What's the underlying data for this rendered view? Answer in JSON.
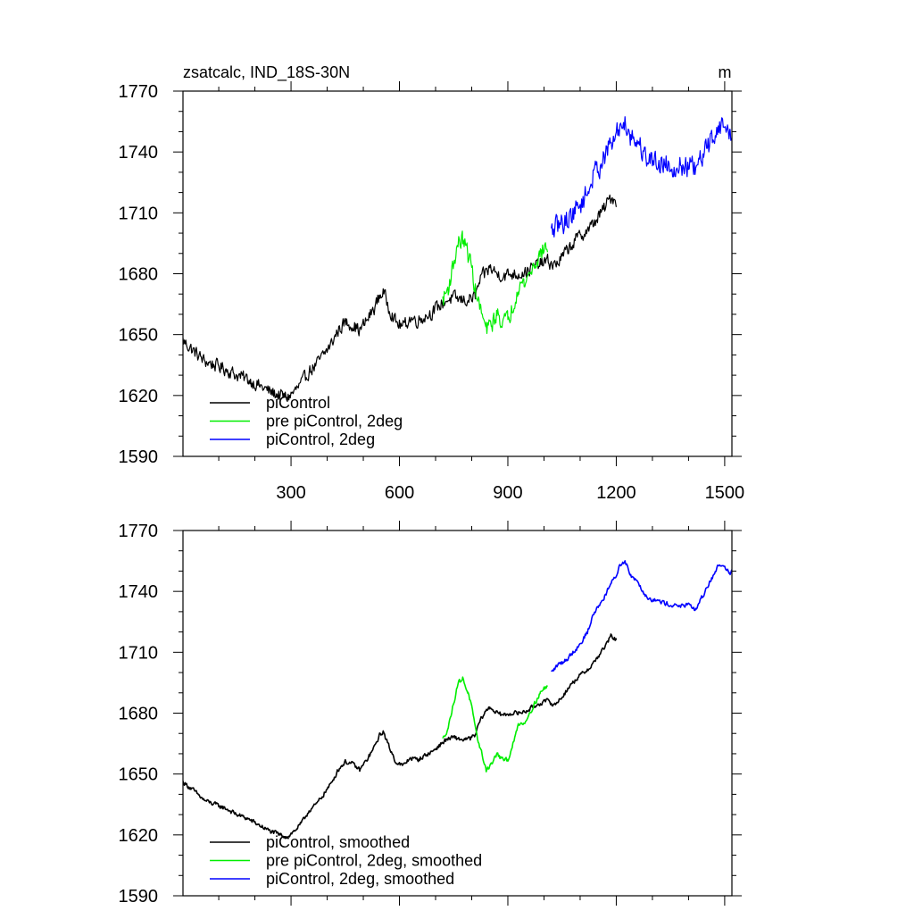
{
  "chart_data": [
    {
      "type": "line",
      "title": "zsatcalc, IND_18S-30N",
      "units": "m",
      "xlim": [
        1,
        1520
      ],
      "ylim": [
        1590,
        1770
      ],
      "xticks": [
        300,
        600,
        900,
        1200,
        1500
      ],
      "yticks": [
        1590,
        1620,
        1650,
        1680,
        1710,
        1740,
        1770
      ],
      "x_minor_step": 100,
      "y_minor_step": 10,
      "legend_position": "bottom-left",
      "series": [
        {
          "name": "piControl",
          "color": "#000000",
          "noise": 3,
          "points": [
            [
              1,
              1647
            ],
            [
              30,
              1642
            ],
            [
              60,
              1637
            ],
            [
              90,
              1635
            ],
            [
              120,
              1633
            ],
            [
              150,
              1630
            ],
            [
              180,
              1628
            ],
            [
              210,
              1625
            ],
            [
              240,
              1622
            ],
            [
              270,
              1620
            ],
            [
              290,
              1619
            ],
            [
              310,
              1622
            ],
            [
              330,
              1626
            ],
            [
              350,
              1632
            ],
            [
              370,
              1635
            ],
            [
              390,
              1640
            ],
            [
              410,
              1645
            ],
            [
              430,
              1652
            ],
            [
              450,
              1656
            ],
            [
              470,
              1655
            ],
            [
              490,
              1652
            ],
            [
              510,
              1657
            ],
            [
              530,
              1663
            ],
            [
              545,
              1669
            ],
            [
              555,
              1671
            ],
            [
              570,
              1664
            ],
            [
              590,
              1656
            ],
            [
              610,
              1654
            ],
            [
              630,
              1658
            ],
            [
              650,
              1657
            ],
            [
              670,
              1659
            ],
            [
              690,
              1661
            ],
            [
              710,
              1664
            ],
            [
              730,
              1667
            ],
            [
              750,
              1668
            ],
            [
              770,
              1667
            ],
            [
              790,
              1667
            ],
            [
              810,
              1669
            ],
            [
              820,
              1675
            ],
            [
              835,
              1680
            ],
            [
              850,
              1683
            ],
            [
              870,
              1680
            ],
            [
              890,
              1679
            ],
            [
              910,
              1680
            ],
            [
              930,
              1680
            ],
            [
              950,
              1681
            ],
            [
              970,
              1683
            ],
            [
              990,
              1685
            ],
            [
              1010,
              1686
            ],
            [
              1030,
              1684
            ],
            [
              1050,
              1688
            ],
            [
              1070,
              1693
            ],
            [
              1090,
              1697
            ],
            [
              1110,
              1700
            ],
            [
              1130,
              1703
            ],
            [
              1150,
              1708
            ],
            [
              1170,
              1713
            ],
            [
              1185,
              1718
            ],
            [
              1200,
              1716
            ]
          ]
        },
        {
          "name": "pre piControl, 2deg",
          "color": "#00ee00",
          "noise": 4,
          "points": [
            [
              720,
              1667
            ],
            [
              735,
              1673
            ],
            [
              750,
              1685
            ],
            [
              762,
              1695
            ],
            [
              775,
              1697
            ],
            [
              790,
              1690
            ],
            [
              800,
              1683
            ],
            [
              812,
              1670
            ],
            [
              825,
              1662
            ],
            [
              840,
              1652
            ],
            [
              855,
              1655
            ],
            [
              870,
              1660
            ],
            [
              885,
              1657
            ],
            [
              900,
              1657
            ],
            [
              915,
              1665
            ],
            [
              930,
              1675
            ],
            [
              945,
              1675
            ],
            [
              960,
              1680
            ],
            [
              975,
              1685
            ],
            [
              990,
              1690
            ],
            [
              1010,
              1694
            ]
          ]
        },
        {
          "name": "piControl, 2deg",
          "color": "#0000ff",
          "noise": 5,
          "points": [
            [
              1020,
              1700
            ],
            [
              1040,
              1704
            ],
            [
              1060,
              1706
            ],
            [
              1080,
              1710
            ],
            [
              1100,
              1714
            ],
            [
              1120,
              1720
            ],
            [
              1140,
              1730
            ],
            [
              1160,
              1735
            ],
            [
              1180,
              1742
            ],
            [
              1200,
              1748
            ],
            [
              1210,
              1753
            ],
            [
              1225,
              1755
            ],
            [
              1240,
              1748
            ],
            [
              1260,
              1745
            ],
            [
              1280,
              1738
            ],
            [
              1300,
              1736
            ],
            [
              1320,
              1735
            ],
            [
              1340,
              1734
            ],
            [
              1360,
              1733
            ],
            [
              1380,
              1733
            ],
            [
              1400,
              1733
            ],
            [
              1420,
              1731
            ],
            [
              1440,
              1738
            ],
            [
              1460,
              1745
            ],
            [
              1480,
              1752
            ],
            [
              1500,
              1753
            ],
            [
              1515,
              1748
            ],
            [
              1520,
              1750
            ]
          ]
        }
      ]
    },
    {
      "type": "line",
      "title": "",
      "xlim": [
        1,
        1520
      ],
      "ylim": [
        1590,
        1770
      ],
      "xticks": [
        300,
        600,
        900,
        1200,
        1500
      ],
      "yticks": [
        1590,
        1620,
        1650,
        1680,
        1710,
        1740,
        1770
      ],
      "x_minor_step": 100,
      "y_minor_step": 10,
      "legend_position": "bottom-left",
      "series": [
        {
          "name": "piControl, smoothed",
          "color": "#000000",
          "noise": 1,
          "points": [
            [
              1,
              1646
            ],
            [
              30,
              1642
            ],
            [
              60,
              1637
            ],
            [
              90,
              1635
            ],
            [
              120,
              1633
            ],
            [
              150,
              1630
            ],
            [
              180,
              1628
            ],
            [
              210,
              1625
            ],
            [
              240,
              1622
            ],
            [
              270,
              1620
            ],
            [
              290,
              1619
            ],
            [
              310,
              1622
            ],
            [
              330,
              1626
            ],
            [
              350,
              1632
            ],
            [
              370,
              1635
            ],
            [
              390,
              1640
            ],
            [
              410,
              1645
            ],
            [
              430,
              1652
            ],
            [
              450,
              1656
            ],
            [
              470,
              1655
            ],
            [
              490,
              1652
            ],
            [
              510,
              1657
            ],
            [
              530,
              1663
            ],
            [
              545,
              1669
            ],
            [
              555,
              1671
            ],
            [
              570,
              1664
            ],
            [
              590,
              1656
            ],
            [
              610,
              1654
            ],
            [
              630,
              1658
            ],
            [
              650,
              1657
            ],
            [
              670,
              1659
            ],
            [
              690,
              1661
            ],
            [
              710,
              1664
            ],
            [
              730,
              1667
            ],
            [
              750,
              1668
            ],
            [
              770,
              1667
            ],
            [
              790,
              1667
            ],
            [
              810,
              1669
            ],
            [
              820,
              1675
            ],
            [
              835,
              1680
            ],
            [
              850,
              1683
            ],
            [
              870,
              1680
            ],
            [
              890,
              1679
            ],
            [
              910,
              1680
            ],
            [
              930,
              1680
            ],
            [
              950,
              1681
            ],
            [
              970,
              1683
            ],
            [
              990,
              1685
            ],
            [
              1010,
              1686
            ],
            [
              1030,
              1684
            ],
            [
              1050,
              1688
            ],
            [
              1070,
              1693
            ],
            [
              1090,
              1697
            ],
            [
              1110,
              1700
            ],
            [
              1130,
              1703
            ],
            [
              1150,
              1708
            ],
            [
              1170,
              1713
            ],
            [
              1185,
              1718
            ],
            [
              1200,
              1716
            ]
          ]
        },
        {
          "name": "pre piControl, 2deg, smoothed",
          "color": "#00ee00",
          "noise": 1,
          "points": [
            [
              720,
              1667
            ],
            [
              735,
              1673
            ],
            [
              750,
              1685
            ],
            [
              762,
              1695
            ],
            [
              775,
              1697
            ],
            [
              790,
              1690
            ],
            [
              800,
              1683
            ],
            [
              812,
              1670
            ],
            [
              825,
              1662
            ],
            [
              840,
              1652
            ],
            [
              855,
              1655
            ],
            [
              870,
              1660
            ],
            [
              885,
              1657
            ],
            [
              900,
              1657
            ],
            [
              915,
              1665
            ],
            [
              930,
              1675
            ],
            [
              945,
              1675
            ],
            [
              960,
              1680
            ],
            [
              975,
              1685
            ],
            [
              990,
              1690
            ],
            [
              1010,
              1694
            ]
          ]
        },
        {
          "name": "piControl, 2deg, smoothed",
          "color": "#0000ff",
          "noise": 1,
          "points": [
            [
              1020,
              1700
            ],
            [
              1040,
              1704
            ],
            [
              1060,
              1706
            ],
            [
              1080,
              1710
            ],
            [
              1100,
              1714
            ],
            [
              1120,
              1720
            ],
            [
              1140,
              1730
            ],
            [
              1160,
              1735
            ],
            [
              1180,
              1742
            ],
            [
              1200,
              1748
            ],
            [
              1210,
              1753
            ],
            [
              1225,
              1755
            ],
            [
              1240,
              1748
            ],
            [
              1260,
              1745
            ],
            [
              1280,
              1738
            ],
            [
              1300,
              1736
            ],
            [
              1320,
              1735
            ],
            [
              1340,
              1734
            ],
            [
              1360,
              1733
            ],
            [
              1380,
              1733
            ],
            [
              1400,
              1733
            ],
            [
              1420,
              1731
            ],
            [
              1440,
              1738
            ],
            [
              1460,
              1745
            ],
            [
              1480,
              1752
            ],
            [
              1500,
              1753
            ],
            [
              1515,
              1748
            ],
            [
              1520,
              1750
            ]
          ]
        }
      ]
    }
  ]
}
